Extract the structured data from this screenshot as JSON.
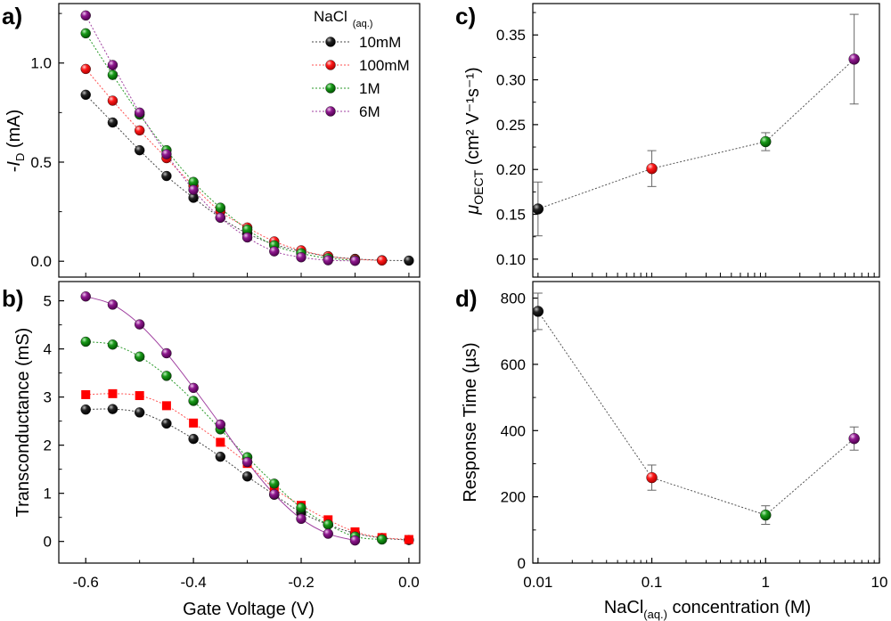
{
  "chart_data": [
    {
      "panel": "a)",
      "type": "scatter",
      "ylabel": {
        "prefix": "-",
        "italic": "I",
        "sub": "D",
        "suffix": " (mA)"
      },
      "xlabel": "",
      "xlim": [
        -0.65,
        0.02
      ],
      "ylim": [
        -0.08,
        1.3
      ],
      "yticks": [
        "0.0",
        "0.5",
        "1.0"
      ],
      "legend": {
        "title": "NaCl",
        "title_sub": "(aq.)",
        "position": "top-right"
      },
      "x": [
        -0.6,
        -0.55,
        -0.5,
        -0.45,
        -0.4,
        -0.35,
        -0.3,
        -0.25,
        -0.2,
        -0.15,
        -0.1,
        -0.05,
        0.0
      ],
      "series": [
        {
          "name": "10mM",
          "color": "#000000",
          "marker": "ball",
          "values": [
            0.84,
            0.7,
            0.56,
            0.43,
            0.32,
            0.22,
            0.14,
            0.085,
            0.05,
            0.025,
            0.012,
            0.005,
            0.003
          ]
        },
        {
          "name": "100mM",
          "color": "#ff0000",
          "marker": "ball",
          "values": [
            0.97,
            0.81,
            0.66,
            0.52,
            0.38,
            0.25,
            0.17,
            0.1,
            0.055,
            0.025,
            0.01,
            0.004,
            null
          ]
        },
        {
          "name": "1M",
          "color": "#008000",
          "marker": "ball",
          "values": [
            1.15,
            0.94,
            0.74,
            0.56,
            0.4,
            0.27,
            0.16,
            0.08,
            0.04,
            0.015,
            0.005,
            null,
            null
          ]
        },
        {
          "name": "6M",
          "color": "#800080",
          "marker": "ball",
          "values": [
            1.24,
            0.99,
            0.75,
            0.54,
            0.36,
            0.22,
            0.12,
            0.05,
            0.02,
            0.005,
            0.002,
            null,
            null
          ]
        }
      ]
    },
    {
      "panel": "b)",
      "type": "scatter",
      "ylabel": "Transconductance (mS)",
      "xlabel": "Gate Voltage (V)",
      "xlim": [
        -0.65,
        0.02
      ],
      "ylim": [
        -0.45,
        5.4
      ],
      "xticks": [
        "-0.6",
        "-0.4",
        "-0.2",
        "0.0"
      ],
      "yticks": [
        "0",
        "1",
        "2",
        "3",
        "4",
        "5"
      ],
      "x": [
        -0.6,
        -0.55,
        -0.5,
        -0.45,
        -0.4,
        -0.35,
        -0.3,
        -0.25,
        -0.2,
        -0.15,
        -0.1,
        -0.05,
        0.0
      ],
      "series": [
        {
          "name": "10mM",
          "color": "#000000",
          "marker": "ball",
          "values": [
            2.74,
            2.75,
            2.68,
            2.45,
            2.13,
            1.76,
            1.35,
            0.97,
            0.6,
            0.35,
            0.17,
            0.07,
            0.03
          ]
        },
        {
          "name": "100mM",
          "color": "#ff0000",
          "marker": "square",
          "values": [
            3.05,
            3.07,
            3.03,
            2.82,
            2.46,
            2.06,
            1.62,
            1.1,
            0.75,
            0.45,
            0.2,
            0.08,
            0.04
          ]
        },
        {
          "name": "1M",
          "color": "#008000",
          "marker": "ball",
          "values": [
            4.15,
            4.09,
            3.84,
            3.44,
            2.92,
            2.33,
            1.75,
            1.2,
            0.7,
            0.35,
            0.1,
            0.04,
            null
          ]
        },
        {
          "name": "6M",
          "color": "#800080",
          "marker": "ball",
          "values": [
            5.09,
            4.92,
            4.51,
            3.91,
            3.19,
            2.43,
            1.65,
            0.98,
            0.47,
            0.16,
            0.02,
            null,
            null
          ]
        }
      ]
    },
    {
      "panel": "c)",
      "type": "scatter",
      "ylabel": {
        "mu": "μ",
        "sub": "OECT",
        "units": " (cm² V⁻¹s⁻¹)"
      },
      "xlabel": "",
      "xscale": "log",
      "xlim": [
        0.009,
        10
      ],
      "ylim": [
        0.08,
        0.385
      ],
      "yticks": [
        "0.10",
        "0.15",
        "0.20",
        "0.25",
        "0.30",
        "0.35"
      ],
      "x": [
        0.01,
        0.1,
        1,
        6
      ],
      "series": [
        {
          "name": "10mM",
          "color": "#000000",
          "values": [
            0.156
          ],
          "x": [
            0.01
          ],
          "err": [
            0.03
          ]
        },
        {
          "name": "100mM",
          "color": "#ff0000",
          "values": [
            0.201
          ],
          "x": [
            0.1
          ],
          "err": [
            0.02
          ]
        },
        {
          "name": "1M",
          "color": "#008000",
          "values": [
            0.231
          ],
          "x": [
            1
          ],
          "err": [
            0.01
          ]
        },
        {
          "name": "6M",
          "color": "#800080",
          "values": [
            0.323
          ],
          "x": [
            6
          ],
          "err": [
            0.05
          ]
        }
      ]
    },
    {
      "panel": "d)",
      "type": "scatter",
      "ylabel": "Response Time (µs)",
      "xlabel": {
        "prefix": "NaCl",
        "sub": "(aq.)",
        "suffix": " concentration (M)"
      },
      "xscale": "log",
      "xlim": [
        0.009,
        10
      ],
      "ylim": [
        0,
        850
      ],
      "xticks": [
        "0.01",
        "0.1",
        "1",
        "10"
      ],
      "yticks": [
        "0",
        "200",
        "400",
        "600",
        "800"
      ],
      "x": [
        0.01,
        0.1,
        1,
        6
      ],
      "series": [
        {
          "name": "10mM",
          "color": "#000000",
          "values": [
            760
          ],
          "x": [
            0.01
          ],
          "err": [
            55
          ]
        },
        {
          "name": "100mM",
          "color": "#ff0000",
          "values": [
            258
          ],
          "x": [
            0.1
          ],
          "err": [
            38
          ]
        },
        {
          "name": "1M",
          "color": "#008000",
          "values": [
            145
          ],
          "x": [
            1
          ],
          "err": [
            28
          ]
        },
        {
          "name": "6M",
          "color": "#800080",
          "values": [
            376
          ],
          "x": [
            6
          ],
          "err": [
            35
          ]
        }
      ]
    }
  ]
}
